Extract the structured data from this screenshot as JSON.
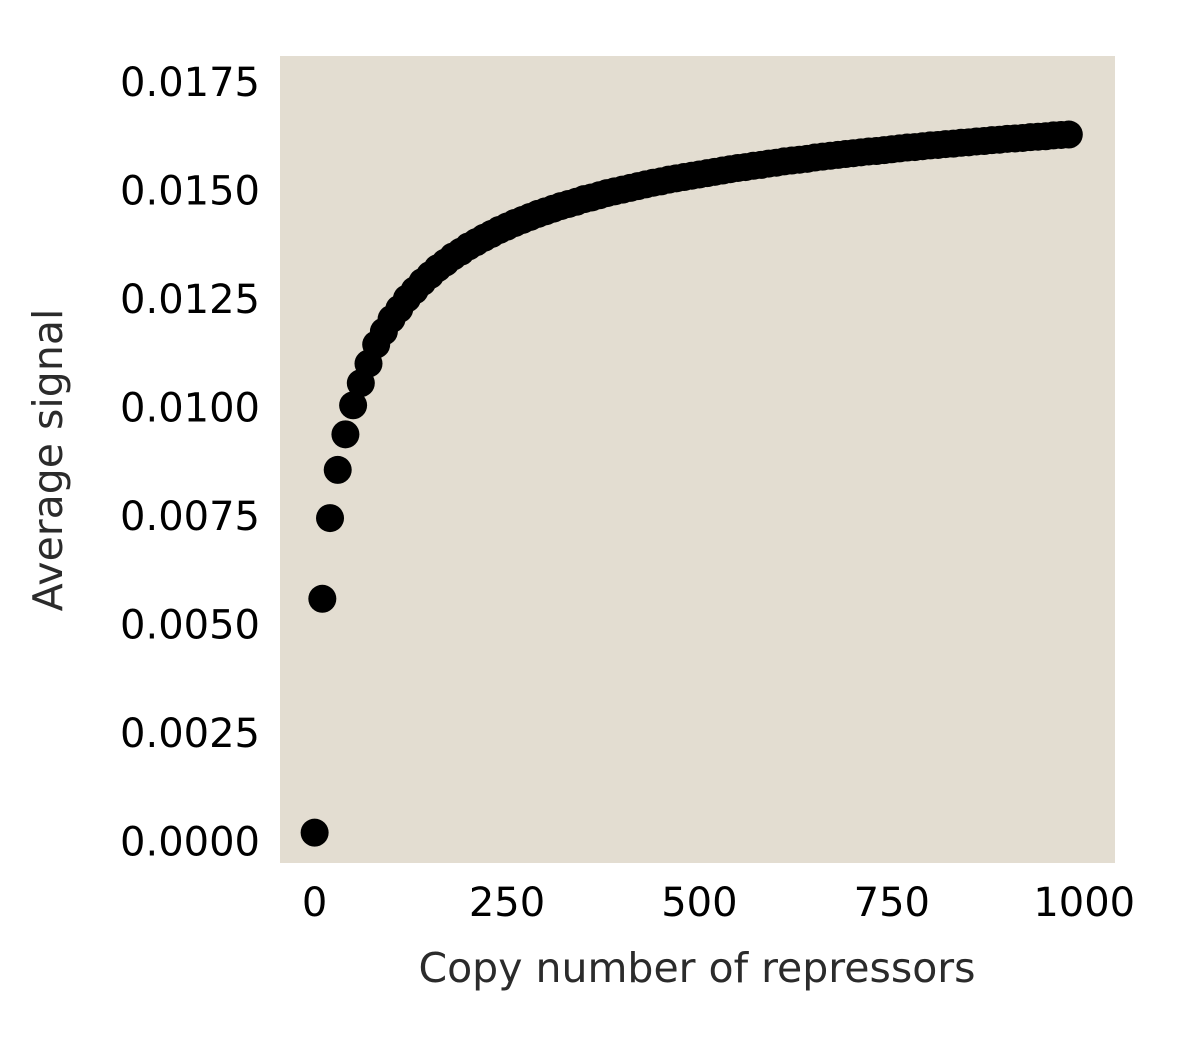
{
  "chart_data": {
    "type": "scatter",
    "title": "",
    "xlabel": "Copy number of repressors",
    "ylabel": "Average signal",
    "xlim": [
      -45,
      1040
    ],
    "ylim": [
      -0.0005,
      0.0181
    ],
    "x_ticks": [
      0,
      250,
      500,
      750,
      1000
    ],
    "x_tick_labels": [
      "0",
      "250",
      "500",
      "750",
      "1000"
    ],
    "y_ticks": [
      0.0,
      0.0025,
      0.005,
      0.0075,
      0.01,
      0.0125,
      0.015,
      0.0175
    ],
    "y_tick_labels": [
      "0.0000",
      "0.0025",
      "0.0050",
      "0.0075",
      "0.0100",
      "0.0125",
      "0.0150",
      "0.0175"
    ],
    "grid": false,
    "legend": "none",
    "colors": {
      "plot_background": "#e3ddd1",
      "marker": "#000000",
      "axis_label_text": "#2b2b2b",
      "tick_text": "#000000"
    },
    "series": [
      {
        "x": [
          0,
          10,
          20,
          30,
          40,
          50,
          60,
          70,
          80,
          90,
          100,
          110,
          120,
          130,
          140,
          150,
          160,
          170,
          180,
          190,
          200,
          210,
          220,
          230,
          240,
          250,
          260,
          270,
          280,
          290,
          300,
          310,
          320,
          330,
          340,
          350,
          360,
          370,
          380,
          390,
          400,
          410,
          420,
          430,
          440,
          450,
          460,
          470,
          480,
          490,
          500,
          510,
          520,
          530,
          540,
          550,
          560,
          570,
          580,
          590,
          600,
          610,
          620,
          630,
          640,
          650,
          660,
          670,
          680,
          690,
          700,
          710,
          720,
          730,
          740,
          750,
          760,
          770,
          780,
          790,
          800,
          810,
          820,
          830,
          840,
          850,
          860,
          870,
          880,
          890,
          900,
          910,
          920,
          930,
          940,
          950,
          960,
          970,
          980
        ],
        "y": [
          0.0002,
          0.00559,
          0.00745,
          0.00856,
          0.00938,
          0.01005,
          0.01056,
          0.01101,
          0.01145,
          0.01175,
          0.01204,
          0.01227,
          0.01251,
          0.0127,
          0.01289,
          0.01305,
          0.01321,
          0.01334,
          0.01348,
          0.01359,
          0.01371,
          0.01381,
          0.01391,
          0.014,
          0.01409,
          0.01417,
          0.01425,
          0.01432,
          0.01439,
          0.01446,
          0.01452,
          0.01458,
          0.01464,
          0.01469,
          0.01474,
          0.0148,
          0.01484,
          0.01489,
          0.01494,
          0.01498,
          0.01502,
          0.01506,
          0.0151,
          0.01514,
          0.01518,
          0.01521,
          0.01525,
          0.01528,
          0.01531,
          0.01534,
          0.01537,
          0.0154,
          0.01543,
          0.01546,
          0.01549,
          0.01552,
          0.01554,
          0.01557,
          0.01559,
          0.01562,
          0.01564,
          0.01567,
          0.01569,
          0.01571,
          0.01573,
          0.01576,
          0.01578,
          0.0158,
          0.01582,
          0.01584,
          0.01586,
          0.01588,
          0.0159,
          0.01591,
          0.01593,
          0.01595,
          0.01597,
          0.01599,
          0.016,
          0.01602,
          0.01604,
          0.01605,
          0.01607,
          0.01608,
          0.0161,
          0.01611,
          0.01613,
          0.01614,
          0.01616,
          0.01617,
          0.01619,
          0.0162,
          0.01621,
          0.01623,
          0.01624,
          0.01625,
          0.01627,
          0.01628,
          0.01629
        ]
      }
    ]
  }
}
